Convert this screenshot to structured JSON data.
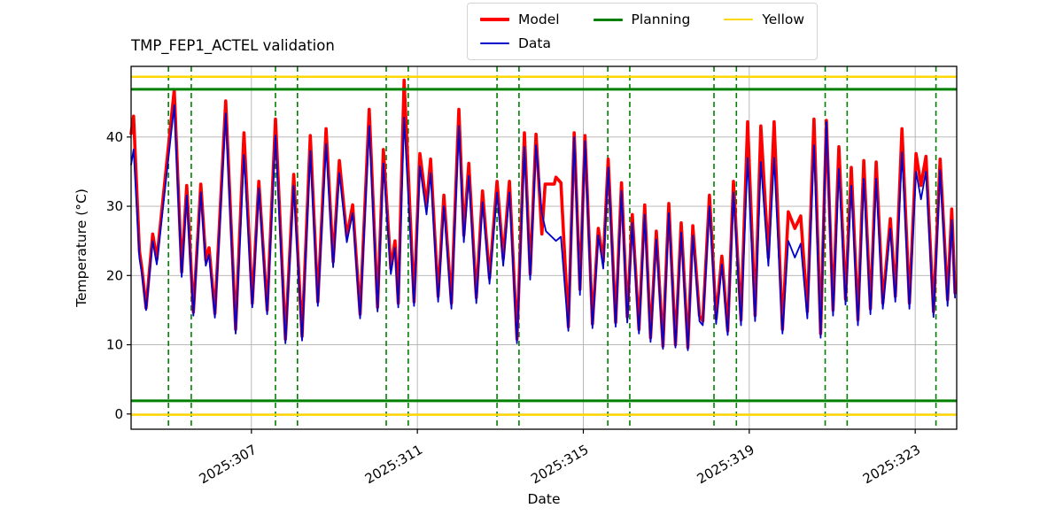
{
  "chart_data": {
    "type": "line",
    "title": "TMP_FEP1_ACTEL validation",
    "xlabel": "Date",
    "ylabel": "Temperature (°C)",
    "xlim": [
      304.1,
      324.0
    ],
    "ylim": [
      -2.2,
      50.2
    ],
    "grid": true,
    "xticks": [
      {
        "value": 307,
        "label": "2025:307"
      },
      {
        "value": 311,
        "label": "2025:311"
      },
      {
        "value": 315,
        "label": "2025:315"
      },
      {
        "value": 319,
        "label": "2025:319"
      },
      {
        "value": 323,
        "label": "2025:323"
      }
    ],
    "yticks": [
      {
        "value": 0,
        "label": "0"
      },
      {
        "value": 10,
        "label": "10"
      },
      {
        "value": 20,
        "label": "20"
      },
      {
        "value": 30,
        "label": "30"
      },
      {
        "value": 40,
        "label": "40"
      }
    ],
    "legend": {
      "position": "top-center",
      "entries": [
        {
          "label": "Model",
          "color": "#ff0000",
          "lw": 4
        },
        {
          "label": "Data",
          "color": "#0000cd",
          "lw": 2
        },
        {
          "label": "Planning",
          "color": "#008000",
          "lw": 3
        },
        {
          "label": "Yellow",
          "color": "#ffd700",
          "lw": 2.5
        }
      ]
    },
    "hlines": [
      {
        "name": "yellow-limit-high",
        "y": 48.7,
        "color": "#ffd700",
        "lw": 2.5
      },
      {
        "name": "yellow-limit-low",
        "y": -0.1,
        "color": "#ffd700",
        "lw": 2.5
      },
      {
        "name": "planning-limit-high",
        "y": 46.9,
        "color": "#008000",
        "lw": 3
      },
      {
        "name": "planning-limit-low",
        "y": 1.9,
        "color": "#008000",
        "lw": 3
      }
    ],
    "vlines": {
      "color": "#008000",
      "style": "dashed",
      "x": [
        305.0,
        305.55,
        307.58,
        308.11,
        310.25,
        310.78,
        312.92,
        313.45,
        315.59,
        316.12,
        318.15,
        318.69,
        320.83,
        321.36,
        323.5
      ]
    },
    "series": [
      {
        "name": "Model",
        "color": "#ff0000",
        "lw": 3.6,
        "points": [
          [
            304.1,
            40.5
          ],
          [
            304.16,
            43.0
          ],
          [
            304.3,
            23.5
          ],
          [
            304.36,
            21.0
          ],
          [
            304.46,
            15.3
          ],
          [
            304.62,
            26.0
          ],
          [
            304.72,
            22.3
          ],
          [
            305.14,
            46.8
          ],
          [
            305.32,
            20.5
          ],
          [
            305.44,
            33.0
          ],
          [
            305.6,
            14.7
          ],
          [
            305.78,
            33.2
          ],
          [
            305.9,
            22.2
          ],
          [
            305.98,
            24.0
          ],
          [
            306.12,
            14.5
          ],
          [
            306.38,
            45.2
          ],
          [
            306.62,
            12.2
          ],
          [
            306.82,
            40.6
          ],
          [
            307.02,
            16.0
          ],
          [
            307.18,
            33.6
          ],
          [
            307.38,
            15.0
          ],
          [
            307.58,
            42.6
          ],
          [
            307.82,
            10.8
          ],
          [
            308.02,
            34.6
          ],
          [
            308.22,
            11.2
          ],
          [
            308.42,
            40.2
          ],
          [
            308.6,
            16.2
          ],
          [
            308.8,
            41.2
          ],
          [
            308.97,
            22.0
          ],
          [
            309.12,
            36.6
          ],
          [
            309.3,
            25.6
          ],
          [
            309.44,
            30.2
          ],
          [
            309.62,
            14.4
          ],
          [
            309.84,
            44.0
          ],
          [
            310.04,
            15.4
          ],
          [
            310.18,
            38.2
          ],
          [
            310.36,
            21.0
          ],
          [
            310.46,
            25.0
          ],
          [
            310.54,
            16.0
          ],
          [
            310.68,
            48.2
          ],
          [
            310.92,
            16.2
          ],
          [
            311.06,
            37.6
          ],
          [
            311.22,
            30.0
          ],
          [
            311.32,
            36.8
          ],
          [
            311.5,
            17.0
          ],
          [
            311.64,
            31.6
          ],
          [
            311.82,
            16.0
          ],
          [
            312.0,
            44.0
          ],
          [
            312.12,
            25.8
          ],
          [
            312.24,
            36.2
          ],
          [
            312.42,
            16.8
          ],
          [
            312.57,
            32.2
          ],
          [
            312.74,
            19.6
          ],
          [
            312.92,
            33.6
          ],
          [
            313.07,
            22.4
          ],
          [
            313.22,
            33.6
          ],
          [
            313.4,
            10.8
          ],
          [
            313.58,
            40.6
          ],
          [
            313.72,
            20.2
          ],
          [
            313.86,
            40.4
          ],
          [
            314.0,
            26.0
          ],
          [
            314.08,
            33.2
          ],
          [
            314.3,
            33.2
          ],
          [
            314.34,
            34.2
          ],
          [
            314.46,
            33.4
          ],
          [
            314.64,
            12.6
          ],
          [
            314.78,
            40.6
          ],
          [
            314.92,
            18.0
          ],
          [
            315.04,
            40.2
          ],
          [
            315.22,
            13.0
          ],
          [
            315.36,
            26.8
          ],
          [
            315.48,
            22.0
          ],
          [
            315.6,
            36.8
          ],
          [
            315.78,
            13.2
          ],
          [
            315.92,
            33.4
          ],
          [
            316.06,
            14.0
          ],
          [
            316.18,
            28.8
          ],
          [
            316.34,
            12.2
          ],
          [
            316.48,
            30.2
          ],
          [
            316.62,
            11.0
          ],
          [
            316.76,
            26.4
          ],
          [
            316.92,
            9.8
          ],
          [
            317.06,
            30.4
          ],
          [
            317.22,
            10.0
          ],
          [
            317.36,
            27.6
          ],
          [
            317.52,
            9.6
          ],
          [
            317.64,
            27.2
          ],
          [
            317.8,
            14.2
          ],
          [
            317.88,
            13.4
          ],
          [
            318.04,
            31.6
          ],
          [
            318.2,
            13.8
          ],
          [
            318.34,
            22.8
          ],
          [
            318.48,
            12.0
          ],
          [
            318.62,
            33.6
          ],
          [
            318.8,
            13.6
          ],
          [
            318.96,
            42.2
          ],
          [
            319.14,
            14.2
          ],
          [
            319.28,
            41.6
          ],
          [
            319.46,
            22.6
          ],
          [
            319.6,
            42.2
          ],
          [
            319.8,
            12.2
          ],
          [
            319.94,
            29.2
          ],
          [
            320.1,
            26.8
          ],
          [
            320.24,
            28.6
          ],
          [
            320.4,
            14.8
          ],
          [
            320.56,
            42.6
          ],
          [
            320.72,
            11.6
          ],
          [
            320.86,
            42.4
          ],
          [
            321.02,
            15.0
          ],
          [
            321.16,
            38.6
          ],
          [
            321.32,
            16.6
          ],
          [
            321.46,
            35.6
          ],
          [
            321.62,
            13.6
          ],
          [
            321.76,
            36.6
          ],
          [
            321.92,
            15.2
          ],
          [
            322.06,
            36.4
          ],
          [
            322.22,
            16.0
          ],
          [
            322.4,
            28.2
          ],
          [
            322.52,
            17.0
          ],
          [
            322.68,
            41.2
          ],
          [
            322.86,
            16.0
          ],
          [
            323.02,
            37.6
          ],
          [
            323.14,
            33.0
          ],
          [
            323.26,
            37.2
          ],
          [
            323.44,
            14.8
          ],
          [
            323.6,
            36.8
          ],
          [
            323.78,
            16.5
          ],
          [
            323.88,
            29.6
          ],
          [
            323.96,
            17.5
          ]
        ]
      },
      {
        "name": "Data",
        "color": "#0000cd",
        "lw": 1.8,
        "points": [
          [
            304.1,
            36.0
          ],
          [
            304.16,
            38.2
          ],
          [
            304.3,
            22.5
          ],
          [
            304.36,
            20.2
          ],
          [
            304.46,
            15.0
          ],
          [
            304.62,
            25.0
          ],
          [
            304.72,
            21.6
          ],
          [
            305.14,
            44.6
          ],
          [
            305.32,
            19.8
          ],
          [
            305.44,
            31.6
          ],
          [
            305.6,
            14.2
          ],
          [
            305.78,
            32.0
          ],
          [
            305.9,
            21.4
          ],
          [
            305.98,
            23.0
          ],
          [
            306.12,
            13.9
          ],
          [
            306.38,
            43.4
          ],
          [
            306.62,
            11.6
          ],
          [
            306.82,
            37.4
          ],
          [
            307.02,
            15.4
          ],
          [
            307.18,
            32.6
          ],
          [
            307.38,
            14.4
          ],
          [
            307.58,
            40.2
          ],
          [
            307.82,
            10.2
          ],
          [
            308.02,
            33.0
          ],
          [
            308.22,
            10.6
          ],
          [
            308.42,
            38.0
          ],
          [
            308.6,
            15.6
          ],
          [
            308.8,
            39.0
          ],
          [
            308.97,
            21.2
          ],
          [
            309.12,
            34.8
          ],
          [
            309.3,
            24.8
          ],
          [
            309.44,
            29.0
          ],
          [
            309.62,
            13.8
          ],
          [
            309.84,
            41.6
          ],
          [
            310.04,
            14.8
          ],
          [
            310.18,
            36.2
          ],
          [
            310.36,
            20.2
          ],
          [
            310.46,
            24.0
          ],
          [
            310.54,
            15.4
          ],
          [
            310.68,
            42.8
          ],
          [
            310.92,
            15.6
          ],
          [
            311.06,
            35.8
          ],
          [
            311.22,
            28.8
          ],
          [
            311.32,
            34.8
          ],
          [
            311.5,
            16.2
          ],
          [
            311.64,
            30.0
          ],
          [
            311.82,
            15.2
          ],
          [
            312.0,
            41.6
          ],
          [
            312.12,
            24.8
          ],
          [
            312.24,
            34.4
          ],
          [
            312.42,
            16.0
          ],
          [
            312.57,
            30.6
          ],
          [
            312.74,
            18.8
          ],
          [
            312.92,
            32.0
          ],
          [
            313.07,
            21.4
          ],
          [
            313.22,
            32.0
          ],
          [
            313.4,
            10.2
          ],
          [
            313.58,
            38.6
          ],
          [
            313.72,
            19.4
          ],
          [
            313.86,
            38.8
          ],
          [
            314.0,
            29.0
          ],
          [
            314.1,
            26.4
          ],
          [
            314.34,
            25.0
          ],
          [
            314.46,
            25.6
          ],
          [
            314.64,
            12.0
          ],
          [
            314.78,
            40.0
          ],
          [
            314.92,
            17.2
          ],
          [
            315.04,
            39.4
          ],
          [
            315.22,
            12.4
          ],
          [
            315.36,
            25.8
          ],
          [
            315.48,
            21.0
          ],
          [
            315.6,
            35.6
          ],
          [
            315.78,
            12.6
          ],
          [
            315.92,
            32.2
          ],
          [
            316.06,
            13.2
          ],
          [
            316.18,
            27.6
          ],
          [
            316.34,
            11.6
          ],
          [
            316.48,
            28.8
          ],
          [
            316.62,
            10.4
          ],
          [
            316.76,
            25.2
          ],
          [
            316.92,
            9.4
          ],
          [
            317.06,
            29.0
          ],
          [
            317.22,
            9.6
          ],
          [
            317.36,
            26.2
          ],
          [
            317.52,
            9.2
          ],
          [
            317.64,
            25.8
          ],
          [
            317.8,
            13.4
          ],
          [
            317.88,
            12.8
          ],
          [
            318.04,
            30.0
          ],
          [
            318.2,
            13.0
          ],
          [
            318.34,
            21.6
          ],
          [
            318.48,
            11.4
          ],
          [
            318.62,
            32.0
          ],
          [
            318.8,
            12.8
          ],
          [
            318.96,
            37.0
          ],
          [
            319.14,
            13.4
          ],
          [
            319.28,
            36.4
          ],
          [
            319.46,
            21.4
          ],
          [
            319.6,
            37.0
          ],
          [
            319.8,
            11.6
          ],
          [
            319.94,
            25.0
          ],
          [
            320.1,
            22.6
          ],
          [
            320.24,
            24.6
          ],
          [
            320.4,
            13.8
          ],
          [
            320.56,
            38.8
          ],
          [
            320.72,
            11.0
          ],
          [
            320.86,
            42.2
          ],
          [
            321.02,
            14.2
          ],
          [
            321.16,
            35.4
          ],
          [
            321.32,
            15.8
          ],
          [
            321.46,
            33.0
          ],
          [
            321.62,
            12.8
          ],
          [
            321.76,
            34.0
          ],
          [
            321.92,
            14.4
          ],
          [
            322.06,
            34.0
          ],
          [
            322.22,
            15.2
          ],
          [
            322.4,
            26.8
          ],
          [
            322.52,
            16.2
          ],
          [
            322.68,
            37.8
          ],
          [
            322.86,
            15.2
          ],
          [
            323.02,
            35.0
          ],
          [
            323.14,
            31.0
          ],
          [
            323.26,
            35.0
          ],
          [
            323.44,
            14.0
          ],
          [
            323.6,
            35.2
          ],
          [
            323.78,
            15.6
          ],
          [
            323.88,
            28.0
          ],
          [
            323.96,
            16.8
          ]
        ]
      }
    ]
  }
}
